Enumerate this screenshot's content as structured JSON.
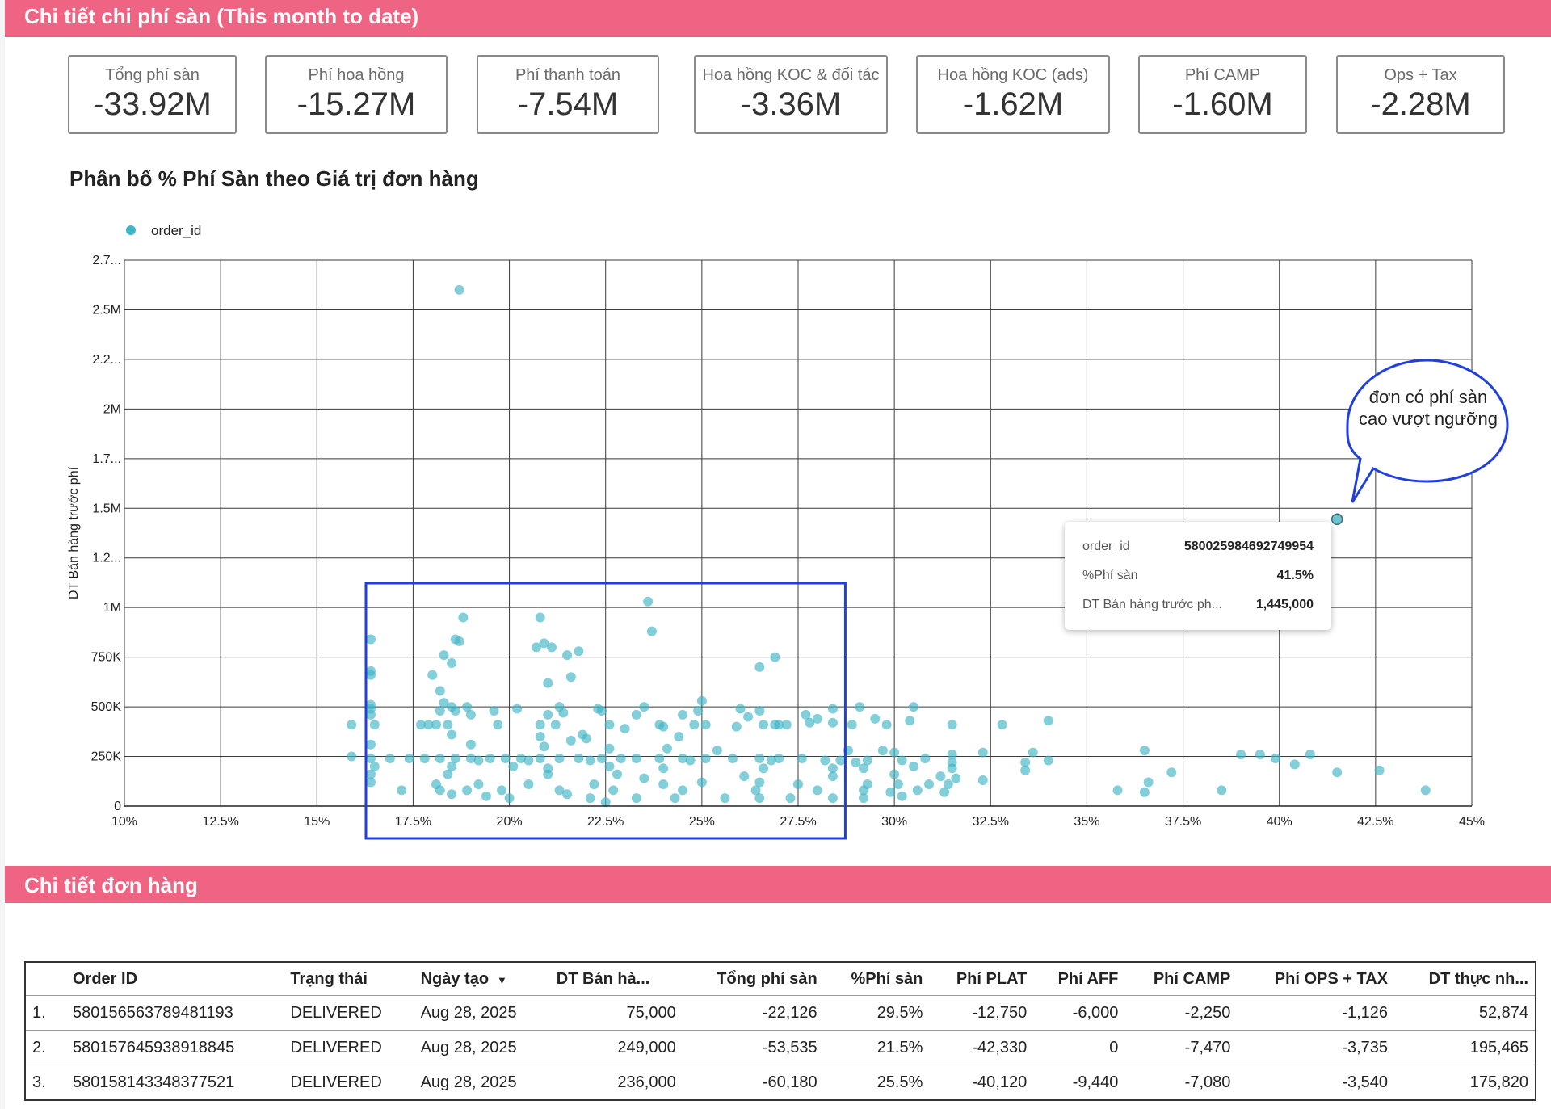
{
  "header": {
    "title": "Chi tiết chi phí sàn (This month to date)"
  },
  "kpis": [
    {
      "label": "Tổng phí sàn",
      "value": "-33.92M"
    },
    {
      "label": "Phí hoa hồng",
      "value": "-15.27M"
    },
    {
      "label": "Phí thanh toán",
      "value": "-7.54M"
    },
    {
      "label": "Hoa hồng KOC & đối tác",
      "value": "-3.36M"
    },
    {
      "label": "Hoa hồng KOC (ads)",
      "value": "-1.62M"
    },
    {
      "label": "Phí CAMP",
      "value": "-1.60M"
    },
    {
      "label": "Ops + Tax",
      "value": "-2.28M"
    }
  ],
  "chart_data": {
    "type": "scatter",
    "title": "Phân bố % Phí Sàn theo Giá trị đơn hàng",
    "xlabel": "",
    "ylabel": "DT Bán hàng trước phí",
    "legend": {
      "entry": "order_id",
      "placement": "top-left"
    },
    "xlim": [
      10,
      45
    ],
    "ylim": [
      0,
      2750000
    ],
    "grid": true,
    "x_ticks": [
      "10%",
      "12.5%",
      "15%",
      "17.5%",
      "20%",
      "22.5%",
      "25%",
      "27.5%",
      "30%",
      "32.5%",
      "35%",
      "37.5%",
      "40%",
      "42.5%",
      "45%"
    ],
    "y_ticks": [
      "0",
      "250K",
      "500K",
      "750K",
      "1M",
      "1.2...",
      "1.5M",
      "1.7...",
      "2M",
      "2.2...",
      "2.5M",
      "2.7..."
    ],
    "series_color": "#3fb6c6",
    "points": [
      [
        18.7,
        2600000
      ],
      [
        41.5,
        1445000
      ],
      [
        23.6,
        1030000
      ],
      [
        18.8,
        950000
      ],
      [
        20.8,
        950000
      ],
      [
        23.7,
        880000
      ],
      [
        16.4,
        840000
      ],
      [
        18.6,
        840000
      ],
      [
        18.7,
        830000
      ],
      [
        20.9,
        820000
      ],
      [
        21.1,
        800000
      ],
      [
        20.7,
        800000
      ],
      [
        21.8,
        780000
      ],
      [
        21.5,
        760000
      ],
      [
        18.3,
        760000
      ],
      [
        26.9,
        750000
      ],
      [
        18.5,
        720000
      ],
      [
        26.5,
        700000
      ],
      [
        16.4,
        680000
      ],
      [
        16.4,
        660000
      ],
      [
        18.0,
        660000
      ],
      [
        21.6,
        650000
      ],
      [
        21.0,
        620000
      ],
      [
        18.2,
        580000
      ],
      [
        25.0,
        530000
      ],
      [
        18.3,
        520000
      ],
      [
        16.4,
        510000
      ],
      [
        18.5,
        500000
      ],
      [
        18.9,
        500000
      ],
      [
        16.4,
        490000
      ],
      [
        20.2,
        490000
      ],
      [
        21.3,
        500000
      ],
      [
        22.3,
        490000
      ],
      [
        23.5,
        500000
      ],
      [
        26.0,
        490000
      ],
      [
        28.4,
        490000
      ],
      [
        29.1,
        500000
      ],
      [
        30.5,
        500000
      ],
      [
        18.2,
        480000
      ],
      [
        18.6,
        480000
      ],
      [
        19.6,
        480000
      ],
      [
        21.4,
        470000
      ],
      [
        22.4,
        480000
      ],
      [
        24.9,
        480000
      ],
      [
        26.5,
        480000
      ],
      [
        16.4,
        460000
      ],
      [
        19.0,
        460000
      ],
      [
        21.0,
        460000
      ],
      [
        23.3,
        460000
      ],
      [
        24.5,
        460000
      ],
      [
        27.7,
        460000
      ],
      [
        26.2,
        450000
      ],
      [
        28.0,
        440000
      ],
      [
        29.5,
        440000
      ],
      [
        30.4,
        430000
      ],
      [
        34.0,
        430000
      ],
      [
        28.4,
        420000
      ],
      [
        27.8,
        420000
      ],
      [
        32.8,
        410000
      ],
      [
        31.5,
        410000
      ],
      [
        29.8,
        410000
      ],
      [
        28.9,
        410000
      ],
      [
        25.1,
        410000
      ],
      [
        24.8,
        410000
      ],
      [
        23.9,
        410000
      ],
      [
        22.6,
        410000
      ],
      [
        21.2,
        410000
      ],
      [
        20.8,
        410000
      ],
      [
        19.7,
        410000
      ],
      [
        18.4,
        410000
      ],
      [
        17.7,
        410000
      ],
      [
        17.9,
        410000
      ],
      [
        18.1,
        410000
      ],
      [
        16.5,
        410000
      ],
      [
        15.9,
        410000
      ],
      [
        26.9,
        410000
      ],
      [
        27.0,
        410000
      ],
      [
        27.2,
        410000
      ],
      [
        26.6,
        410000
      ],
      [
        24.0,
        400000
      ],
      [
        25.9,
        400000
      ],
      [
        23.0,
        390000
      ],
      [
        18.5,
        360000
      ],
      [
        21.9,
        360000
      ],
      [
        24.4,
        350000
      ],
      [
        20.8,
        350000
      ],
      [
        22.0,
        340000
      ],
      [
        21.6,
        330000
      ],
      [
        16.4,
        310000
      ],
      [
        19.0,
        310000
      ],
      [
        20.9,
        300000
      ],
      [
        22.6,
        290000
      ],
      [
        24.1,
        290000
      ],
      [
        25.4,
        280000
      ],
      [
        28.8,
        280000
      ],
      [
        29.7,
        280000
      ],
      [
        30.0,
        270000
      ],
      [
        33.6,
        270000
      ],
      [
        36.5,
        280000
      ],
      [
        39.0,
        260000
      ],
      [
        39.5,
        260000
      ],
      [
        40.8,
        260000
      ],
      [
        32.3,
        270000
      ],
      [
        31.5,
        260000
      ],
      [
        30.8,
        240000
      ],
      [
        29.3,
        230000
      ],
      [
        28.6,
        230000
      ],
      [
        28.2,
        230000
      ],
      [
        27.6,
        240000
      ],
      [
        27.0,
        240000
      ],
      [
        26.5,
        240000
      ],
      [
        25.8,
        240000
      ],
      [
        25.1,
        240000
      ],
      [
        24.5,
        240000
      ],
      [
        23.9,
        240000
      ],
      [
        23.3,
        240000
      ],
      [
        22.9,
        240000
      ],
      [
        22.4,
        240000
      ],
      [
        21.8,
        240000
      ],
      [
        21.3,
        240000
      ],
      [
        20.8,
        240000
      ],
      [
        20.3,
        240000
      ],
      [
        19.9,
        240000
      ],
      [
        19.5,
        240000
      ],
      [
        19.0,
        240000
      ],
      [
        18.6,
        240000
      ],
      [
        18.2,
        240000
      ],
      [
        17.8,
        240000
      ],
      [
        17.4,
        240000
      ],
      [
        16.9,
        240000
      ],
      [
        16.4,
        240000
      ],
      [
        15.9,
        250000
      ],
      [
        19.2,
        230000
      ],
      [
        20.5,
        230000
      ],
      [
        22.1,
        230000
      ],
      [
        24.7,
        230000
      ],
      [
        26.8,
        230000
      ],
      [
        29.0,
        220000
      ],
      [
        30.2,
        230000
      ],
      [
        31.5,
        220000
      ],
      [
        33.4,
        220000
      ],
      [
        34.0,
        230000
      ],
      [
        39.9,
        240000
      ],
      [
        16.5,
        200000
      ],
      [
        18.5,
        200000
      ],
      [
        20.1,
        200000
      ],
      [
        21.0,
        190000
      ],
      [
        22.6,
        200000
      ],
      [
        24.0,
        190000
      ],
      [
        26.6,
        190000
      ],
      [
        28.4,
        190000
      ],
      [
        29.2,
        190000
      ],
      [
        30.5,
        200000
      ],
      [
        31.5,
        190000
      ],
      [
        33.4,
        180000
      ],
      [
        40.4,
        210000
      ],
      [
        37.2,
        170000
      ],
      [
        41.5,
        170000
      ],
      [
        42.6,
        180000
      ],
      [
        16.4,
        160000
      ],
      [
        18.4,
        160000
      ],
      [
        21.0,
        160000
      ],
      [
        22.8,
        160000
      ],
      [
        26.1,
        150000
      ],
      [
        28.4,
        150000
      ],
      [
        30.0,
        160000
      ],
      [
        31.2,
        150000
      ],
      [
        31.6,
        140000
      ],
      [
        32.3,
        130000
      ],
      [
        23.5,
        140000
      ],
      [
        36.6,
        120000
      ],
      [
        16.4,
        120000
      ],
      [
        18.1,
        110000
      ],
      [
        19.2,
        110000
      ],
      [
        20.5,
        110000
      ],
      [
        22.2,
        110000
      ],
      [
        24.0,
        110000
      ],
      [
        25.0,
        120000
      ],
      [
        26.5,
        120000
      ],
      [
        27.5,
        110000
      ],
      [
        29.3,
        110000
      ],
      [
        30.1,
        110000
      ],
      [
        30.9,
        110000
      ],
      [
        31.4,
        110000
      ],
      [
        17.2,
        80000
      ],
      [
        18.2,
        80000
      ],
      [
        18.9,
        80000
      ],
      [
        19.8,
        80000
      ],
      [
        21.3,
        80000
      ],
      [
        22.7,
        80000
      ],
      [
        24.5,
        80000
      ],
      [
        26.4,
        80000
      ],
      [
        28.0,
        80000
      ],
      [
        29.2,
        80000
      ],
      [
        29.9,
        70000
      ],
      [
        30.6,
        80000
      ],
      [
        31.3,
        70000
      ],
      [
        35.8,
        80000
      ],
      [
        36.5,
        70000
      ],
      [
        38.5,
        80000
      ],
      [
        43.8,
        80000
      ],
      [
        18.5,
        60000
      ],
      [
        19.4,
        50000
      ],
      [
        20.0,
        40000
      ],
      [
        22.1,
        40000
      ],
      [
        23.3,
        40000
      ],
      [
        24.3,
        40000
      ],
      [
        25.6,
        40000
      ],
      [
        26.5,
        40000
      ],
      [
        27.3,
        40000
      ],
      [
        28.4,
        40000
      ],
      [
        29.2,
        40000
      ],
      [
        30.2,
        50000
      ],
      [
        22.5,
        20000
      ],
      [
        21.5,
        60000
      ]
    ]
  },
  "tooltip": {
    "rows": [
      {
        "key": "order_id",
        "value": "580025984692749954"
      },
      {
        "key": "%Phí sàn",
        "value": "41.5%"
      },
      {
        "key": "DT Bán hàng trước ph...",
        "value": "1,445,000"
      }
    ]
  },
  "callout": {
    "text": "đơn có phí sàn cao vượt ngưỡng"
  },
  "section2": {
    "title": "Chi tiết đơn hàng"
  },
  "table": {
    "columns": [
      "",
      "Order ID",
      "Trạng thái",
      "Ngày tạo",
      "DT Bán hà...",
      "Tổng phí sàn",
      "%Phí sàn",
      "Phí PLAT",
      "Phí AFF",
      "Phí CAMP",
      "Phí OPS + TAX",
      "DT thực nh..."
    ],
    "sort_caret": "▼",
    "rows": [
      [
        "1.",
        "580156563789481193",
        "DELIVERED",
        "Aug 28, 2025",
        "75,000",
        "-22,126",
        "29.5%",
        "-12,750",
        "-6,000",
        "-2,250",
        "-1,126",
        "52,874"
      ],
      [
        "2.",
        "580157645938918845",
        "DELIVERED",
        "Aug 28, 2025",
        "249,000",
        "-53,535",
        "21.5%",
        "-42,330",
        "0",
        "-7,470",
        "-3,735",
        "195,465"
      ],
      [
        "3.",
        "580158143348377521",
        "DELIVERED",
        "Aug 28, 2025",
        "236,000",
        "-60,180",
        "25.5%",
        "-40,120",
        "-9,440",
        "-7,080",
        "-3,540",
        "175,820"
      ]
    ]
  }
}
